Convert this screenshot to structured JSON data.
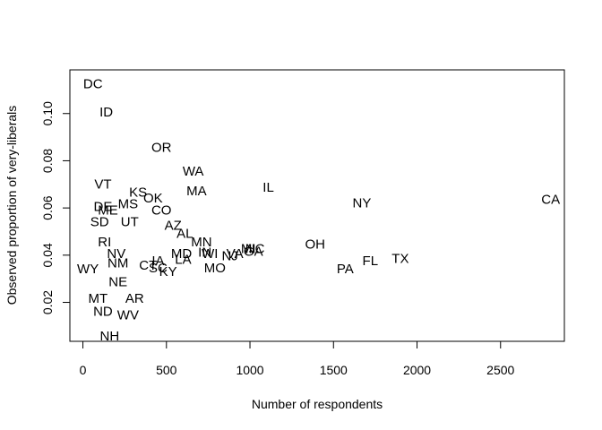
{
  "chart_data": {
    "type": "scatter",
    "title": "",
    "xlabel": "Number of respondents",
    "ylabel": "Observed proportion of very-liberals",
    "xlim": [
      -78,
      2882
    ],
    "ylim": [
      0.0035,
      0.1185
    ],
    "x_ticks": [
      0,
      500,
      1000,
      1500,
      2000,
      2500
    ],
    "y_ticks": [
      0.02,
      0.04,
      0.06,
      0.08,
      0.1
    ],
    "x_tick_labels": [
      "0",
      "500",
      "1000",
      "1500",
      "2000",
      "2500"
    ],
    "y_tick_labels": [
      "0.02",
      "0.04",
      "0.06",
      "0.08",
      "0.10"
    ],
    "grid": false,
    "legend": "none",
    "marker": "state abbreviation text",
    "points": [
      {
        "label": "DC",
        "x": 60,
        "y": 0.1125
      },
      {
        "label": "ID",
        "x": 140,
        "y": 0.1005
      },
      {
        "label": "OR",
        "x": 470,
        "y": 0.0855
      },
      {
        "label": "WA",
        "x": 660,
        "y": 0.0755
      },
      {
        "label": "IL",
        "x": 1110,
        "y": 0.0685
      },
      {
        "label": "MA",
        "x": 680,
        "y": 0.067
      },
      {
        "label": "VT",
        "x": 120,
        "y": 0.07
      },
      {
        "label": "KS",
        "x": 330,
        "y": 0.0665
      },
      {
        "label": "OK",
        "x": 420,
        "y": 0.064
      },
      {
        "label": "NY",
        "x": 1670,
        "y": 0.062
      },
      {
        "label": "CA",
        "x": 2800,
        "y": 0.0635
      },
      {
        "label": "MS",
        "x": 270,
        "y": 0.0615
      },
      {
        "label": "DE",
        "x": 120,
        "y": 0.0605
      },
      {
        "label": "ME",
        "x": 150,
        "y": 0.059
      },
      {
        "label": "CO",
        "x": 470,
        "y": 0.059
      },
      {
        "label": "SD",
        "x": 100,
        "y": 0.054
      },
      {
        "label": "UT",
        "x": 280,
        "y": 0.054
      },
      {
        "label": "AZ",
        "x": 540,
        "y": 0.0525
      },
      {
        "label": "AL",
        "x": 610,
        "y": 0.049
      },
      {
        "label": "RI",
        "x": 130,
        "y": 0.0455
      },
      {
        "label": "MN",
        "x": 710,
        "y": 0.0455
      },
      {
        "label": "OH",
        "x": 1390,
        "y": 0.0445
      },
      {
        "label": "MI",
        "x": 990,
        "y": 0.0425
      },
      {
        "label": "NC",
        "x": 1030,
        "y": 0.0425
      },
      {
        "label": "GA",
        "x": 1020,
        "y": 0.0415
      },
      {
        "label": "IN",
        "x": 730,
        "y": 0.041
      },
      {
        "label": "NV",
        "x": 200,
        "y": 0.0405
      },
      {
        "label": "MD",
        "x": 590,
        "y": 0.0405
      },
      {
        "label": "WI",
        "x": 760,
        "y": 0.0405
      },
      {
        "label": "NJ",
        "x": 880,
        "y": 0.0395
      },
      {
        "label": "VA",
        "x": 910,
        "y": 0.0405
      },
      {
        "label": "TX",
        "x": 1900,
        "y": 0.0385
      },
      {
        "label": "FL",
        "x": 1720,
        "y": 0.0375
      },
      {
        "label": "NM",
        "x": 210,
        "y": 0.0365
      },
      {
        "label": "LA",
        "x": 600,
        "y": 0.038
      },
      {
        "label": "IA",
        "x": 450,
        "y": 0.0375
      },
      {
        "label": "CT",
        "x": 390,
        "y": 0.0355
      },
      {
        "label": "SC",
        "x": 450,
        "y": 0.0345
      },
      {
        "label": "MO",
        "x": 790,
        "y": 0.0345
      },
      {
        "label": "PA",
        "x": 1570,
        "y": 0.034
      },
      {
        "label": "WY",
        "x": 30,
        "y": 0.034
      },
      {
        "label": "KY",
        "x": 510,
        "y": 0.033
      },
      {
        "label": "NE",
        "x": 210,
        "y": 0.0285
      },
      {
        "label": "MT",
        "x": 90,
        "y": 0.0215
      },
      {
        "label": "AR",
        "x": 310,
        "y": 0.0215
      },
      {
        "label": "ND",
        "x": 120,
        "y": 0.016
      },
      {
        "label": "WV",
        "x": 270,
        "y": 0.0145
      },
      {
        "label": "NH",
        "x": 160,
        "y": 0.0055
      }
    ]
  }
}
